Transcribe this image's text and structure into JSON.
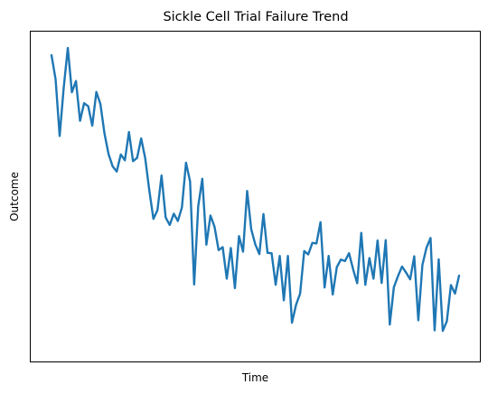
{
  "chart_data": {
    "type": "line",
    "title": "Sickle Cell Trial Failure Trend",
    "xlabel": "Time",
    "ylabel": "Outcome",
    "xticks": [],
    "yticks": [],
    "grid": false,
    "legend": "none",
    "ylim": [
      0,
      100
    ],
    "series": [
      {
        "color": "#1f77b4",
        "values": [
          96.1,
          88.2,
          69.5,
          85.5,
          98.5,
          83.9,
          87.6,
          74.5,
          80.3,
          79.3,
          72.9,
          84.0,
          80.0,
          70.3,
          63.5,
          59.5,
          57.8,
          63.4,
          61.5,
          70.8,
          61.2,
          62.3,
          68.7,
          62.1,
          51.5,
          42.2,
          45.1,
          56.5,
          42.7,
          40.2,
          43.9,
          41.5,
          46.0,
          60.7,
          54.5,
          20.6,
          46.4,
          55.4,
          33.7,
          43.3,
          39.6,
          31.9,
          32.9,
          22.5,
          32.6,
          19.4,
          36.5,
          31.4,
          51.4,
          38.8,
          33.8,
          30.6,
          43.8,
          31.0,
          30.9,
          20.5,
          30.0,
          15.4,
          30.0,
          8.0,
          13.9,
          17.6,
          31.6,
          30.5,
          34.3,
          34.1,
          41.1,
          19.6,
          30.0,
          17.3,
          26.3,
          28.8,
          28.3,
          30.9,
          25.6,
          21.0,
          37.6,
          20.5,
          29.3,
          22.5,
          35.1,
          21.1,
          35.2,
          7.4,
          19.7,
          23.3,
          26.5,
          24.5,
          22.3,
          29.9,
          8.8,
          27.0,
          32.7,
          35.9,
          5.5,
          28.9,
          5.3,
          8.5,
          20.4,
          17.6,
          23.5
        ]
      }
    ]
  }
}
